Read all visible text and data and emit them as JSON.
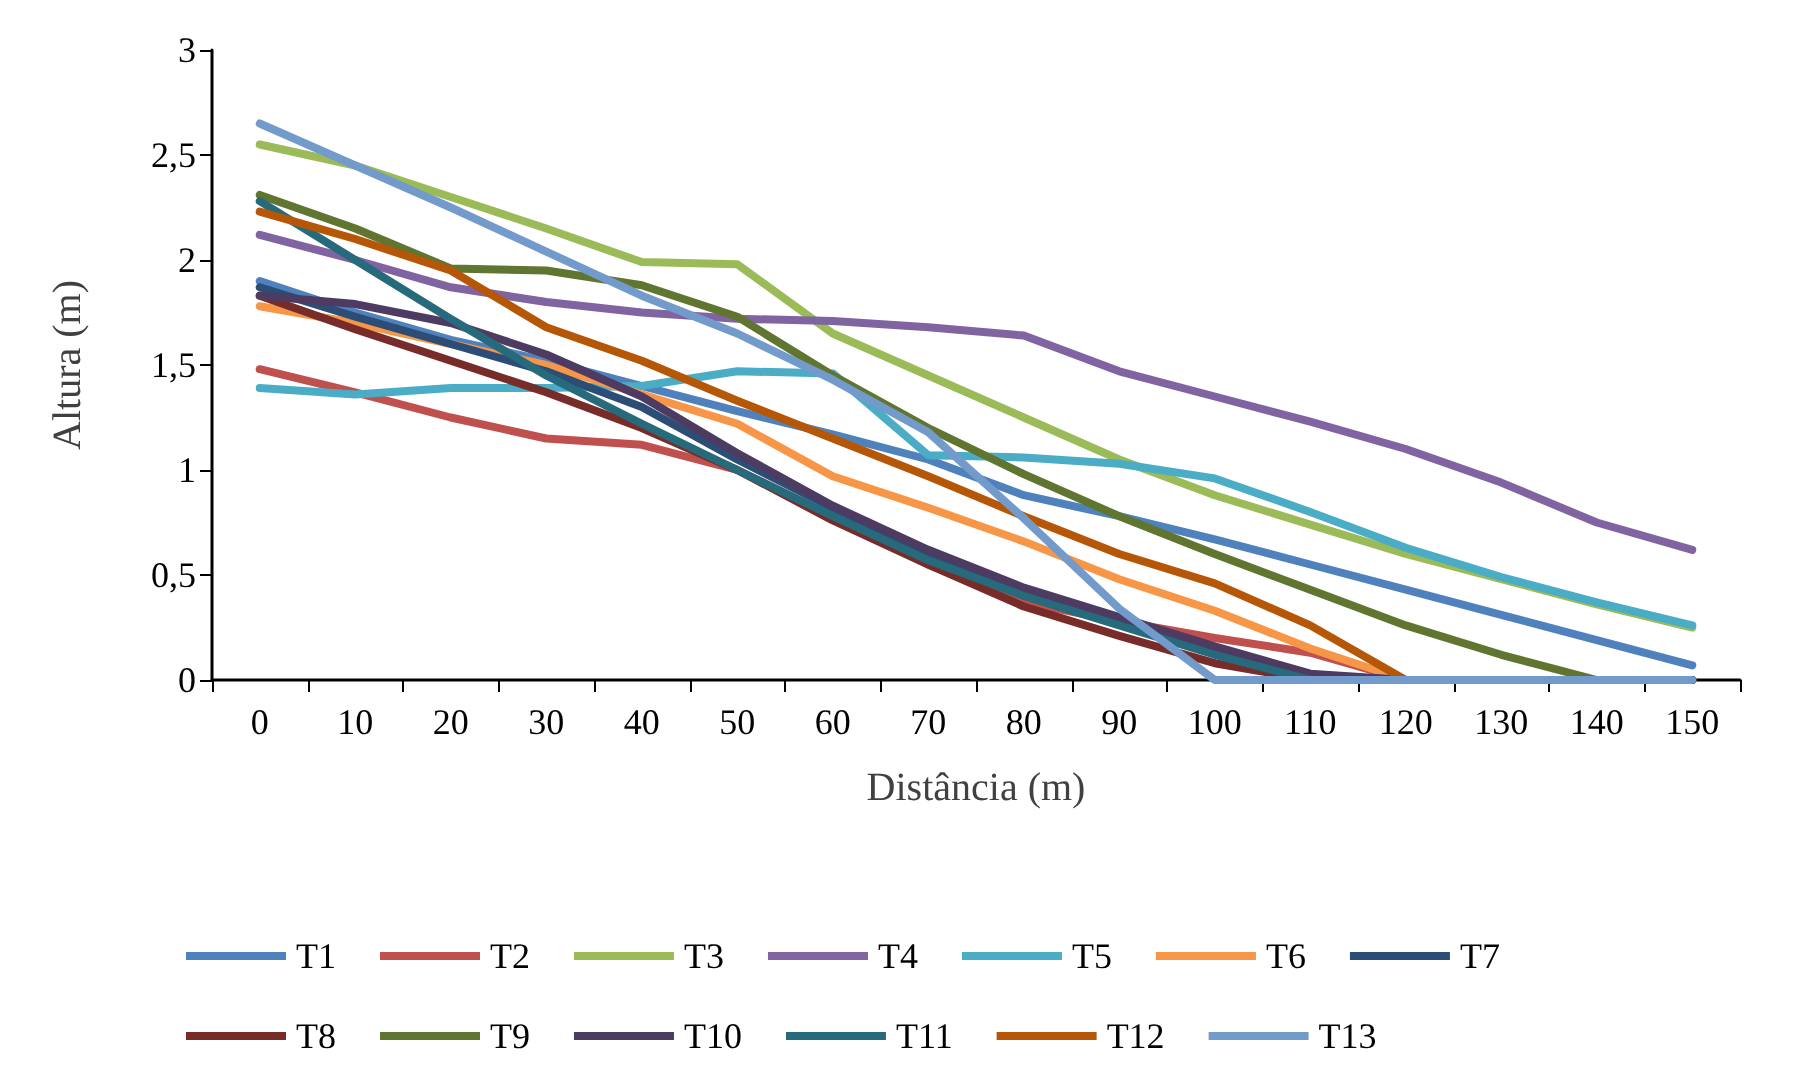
{
  "chart_data": {
    "type": "line",
    "xlabel": "Distância (m)",
    "ylabel": "Altura (m)",
    "categories": [
      "0",
      "10",
      "20",
      "30",
      "40",
      "50",
      "60",
      "70",
      "80",
      "90",
      "100",
      "110",
      "120",
      "130",
      "140",
      "150"
    ],
    "ylim": [
      0,
      3
    ],
    "yticks": [
      0,
      {
        "value": 0.5,
        "label": "0,5"
      },
      1,
      {
        "value": 1.5,
        "label": "1,5"
      },
      2,
      {
        "value": 2.5,
        "label": "2,5"
      },
      3
    ],
    "grid": false,
    "legend": "bottom",
    "marker": "none",
    "line_style": "solid",
    "series": [
      {
        "name": "T1",
        "color": "#4f81bd",
        "values": [
          1.9,
          1.75,
          1.62,
          1.52,
          1.4,
          1.28,
          1.17,
          1.05,
          0.88,
          0.78,
          0.67,
          0.55,
          0.43,
          0.31,
          0.19,
          0.07
        ]
      },
      {
        "name": "T2",
        "color": "#c0504d",
        "values": [
          1.48,
          1.37,
          1.25,
          1.15,
          1.12,
          1.0,
          0.78,
          0.55,
          0.37,
          0.28,
          0.2,
          0.13,
          0,
          0,
          null,
          null
        ]
      },
      {
        "name": "T3",
        "color": "#9bbb59",
        "values": [
          2.55,
          2.45,
          2.3,
          2.15,
          1.99,
          1.98,
          1.65,
          1.45,
          1.25,
          1.05,
          0.88,
          0.74,
          0.6,
          0.48,
          0.36,
          0.25
        ]
      },
      {
        "name": "T4",
        "color": "#8064a2",
        "values": [
          2.12,
          2.0,
          1.87,
          1.8,
          1.75,
          1.72,
          1.71,
          1.68,
          1.64,
          1.47,
          1.35,
          1.23,
          1.1,
          0.94,
          0.75,
          0.62
        ]
      },
      {
        "name": "T5",
        "color": "#4bacc6",
        "values": [
          1.39,
          1.36,
          1.39,
          1.39,
          1.4,
          1.47,
          1.46,
          1.07,
          1.06,
          1.03,
          0.96,
          0.8,
          0.63,
          0.49,
          0.37,
          0.26
        ]
      },
      {
        "name": "T6",
        "color": "#f79646",
        "values": [
          1.78,
          1.7,
          1.6,
          1.5,
          1.36,
          1.22,
          0.97,
          0.82,
          0.66,
          0.48,
          0.33,
          0.15,
          0,
          0,
          null,
          null
        ]
      },
      {
        "name": "T7",
        "color": "#2c4d75",
        "values": [
          1.87,
          1.73,
          1.6,
          1.47,
          1.3,
          1.05,
          0.82,
          0.6,
          0.42,
          0.27,
          0.13,
          0.02,
          0,
          0,
          0,
          0
        ]
      },
      {
        "name": "T8",
        "color": "#772c2a",
        "values": [
          1.83,
          1.67,
          1.52,
          1.37,
          1.2,
          1.0,
          0.76,
          0.55,
          0.35,
          0.21,
          0.08,
          0,
          0,
          0,
          0,
          0
        ]
      },
      {
        "name": "T9",
        "color": "#5f7530",
        "values": [
          2.31,
          2.15,
          1.96,
          1.95,
          1.88,
          1.73,
          1.45,
          1.2,
          0.98,
          0.78,
          0.6,
          0.43,
          0.26,
          0.12,
          0,
          0
        ]
      },
      {
        "name": "T10",
        "color": "#4d3b62",
        "values": [
          1.83,
          1.79,
          1.7,
          1.55,
          1.35,
          1.08,
          0.83,
          0.62,
          0.44,
          0.3,
          0.16,
          0.03,
          0,
          0,
          0,
          0
        ]
      },
      {
        "name": "T11",
        "color": "#276a7c",
        "values": [
          2.28,
          2.0,
          1.72,
          1.45,
          1.22,
          1.0,
          0.78,
          0.57,
          0.4,
          0.26,
          0.12,
          0,
          0,
          0,
          0,
          0
        ]
      },
      {
        "name": "T12",
        "color": "#b65708",
        "values": [
          2.23,
          2.1,
          1.95,
          1.68,
          1.52,
          1.33,
          1.15,
          0.97,
          0.78,
          0.6,
          0.46,
          0.26,
          0,
          0,
          null,
          null
        ]
      },
      {
        "name": "T13",
        "color": "#729aca",
        "values": [
          2.65,
          2.45,
          2.25,
          2.04,
          1.83,
          1.65,
          1.43,
          1.18,
          0.77,
          0.34,
          0,
          0,
          0,
          0,
          0,
          0
        ]
      }
    ]
  }
}
